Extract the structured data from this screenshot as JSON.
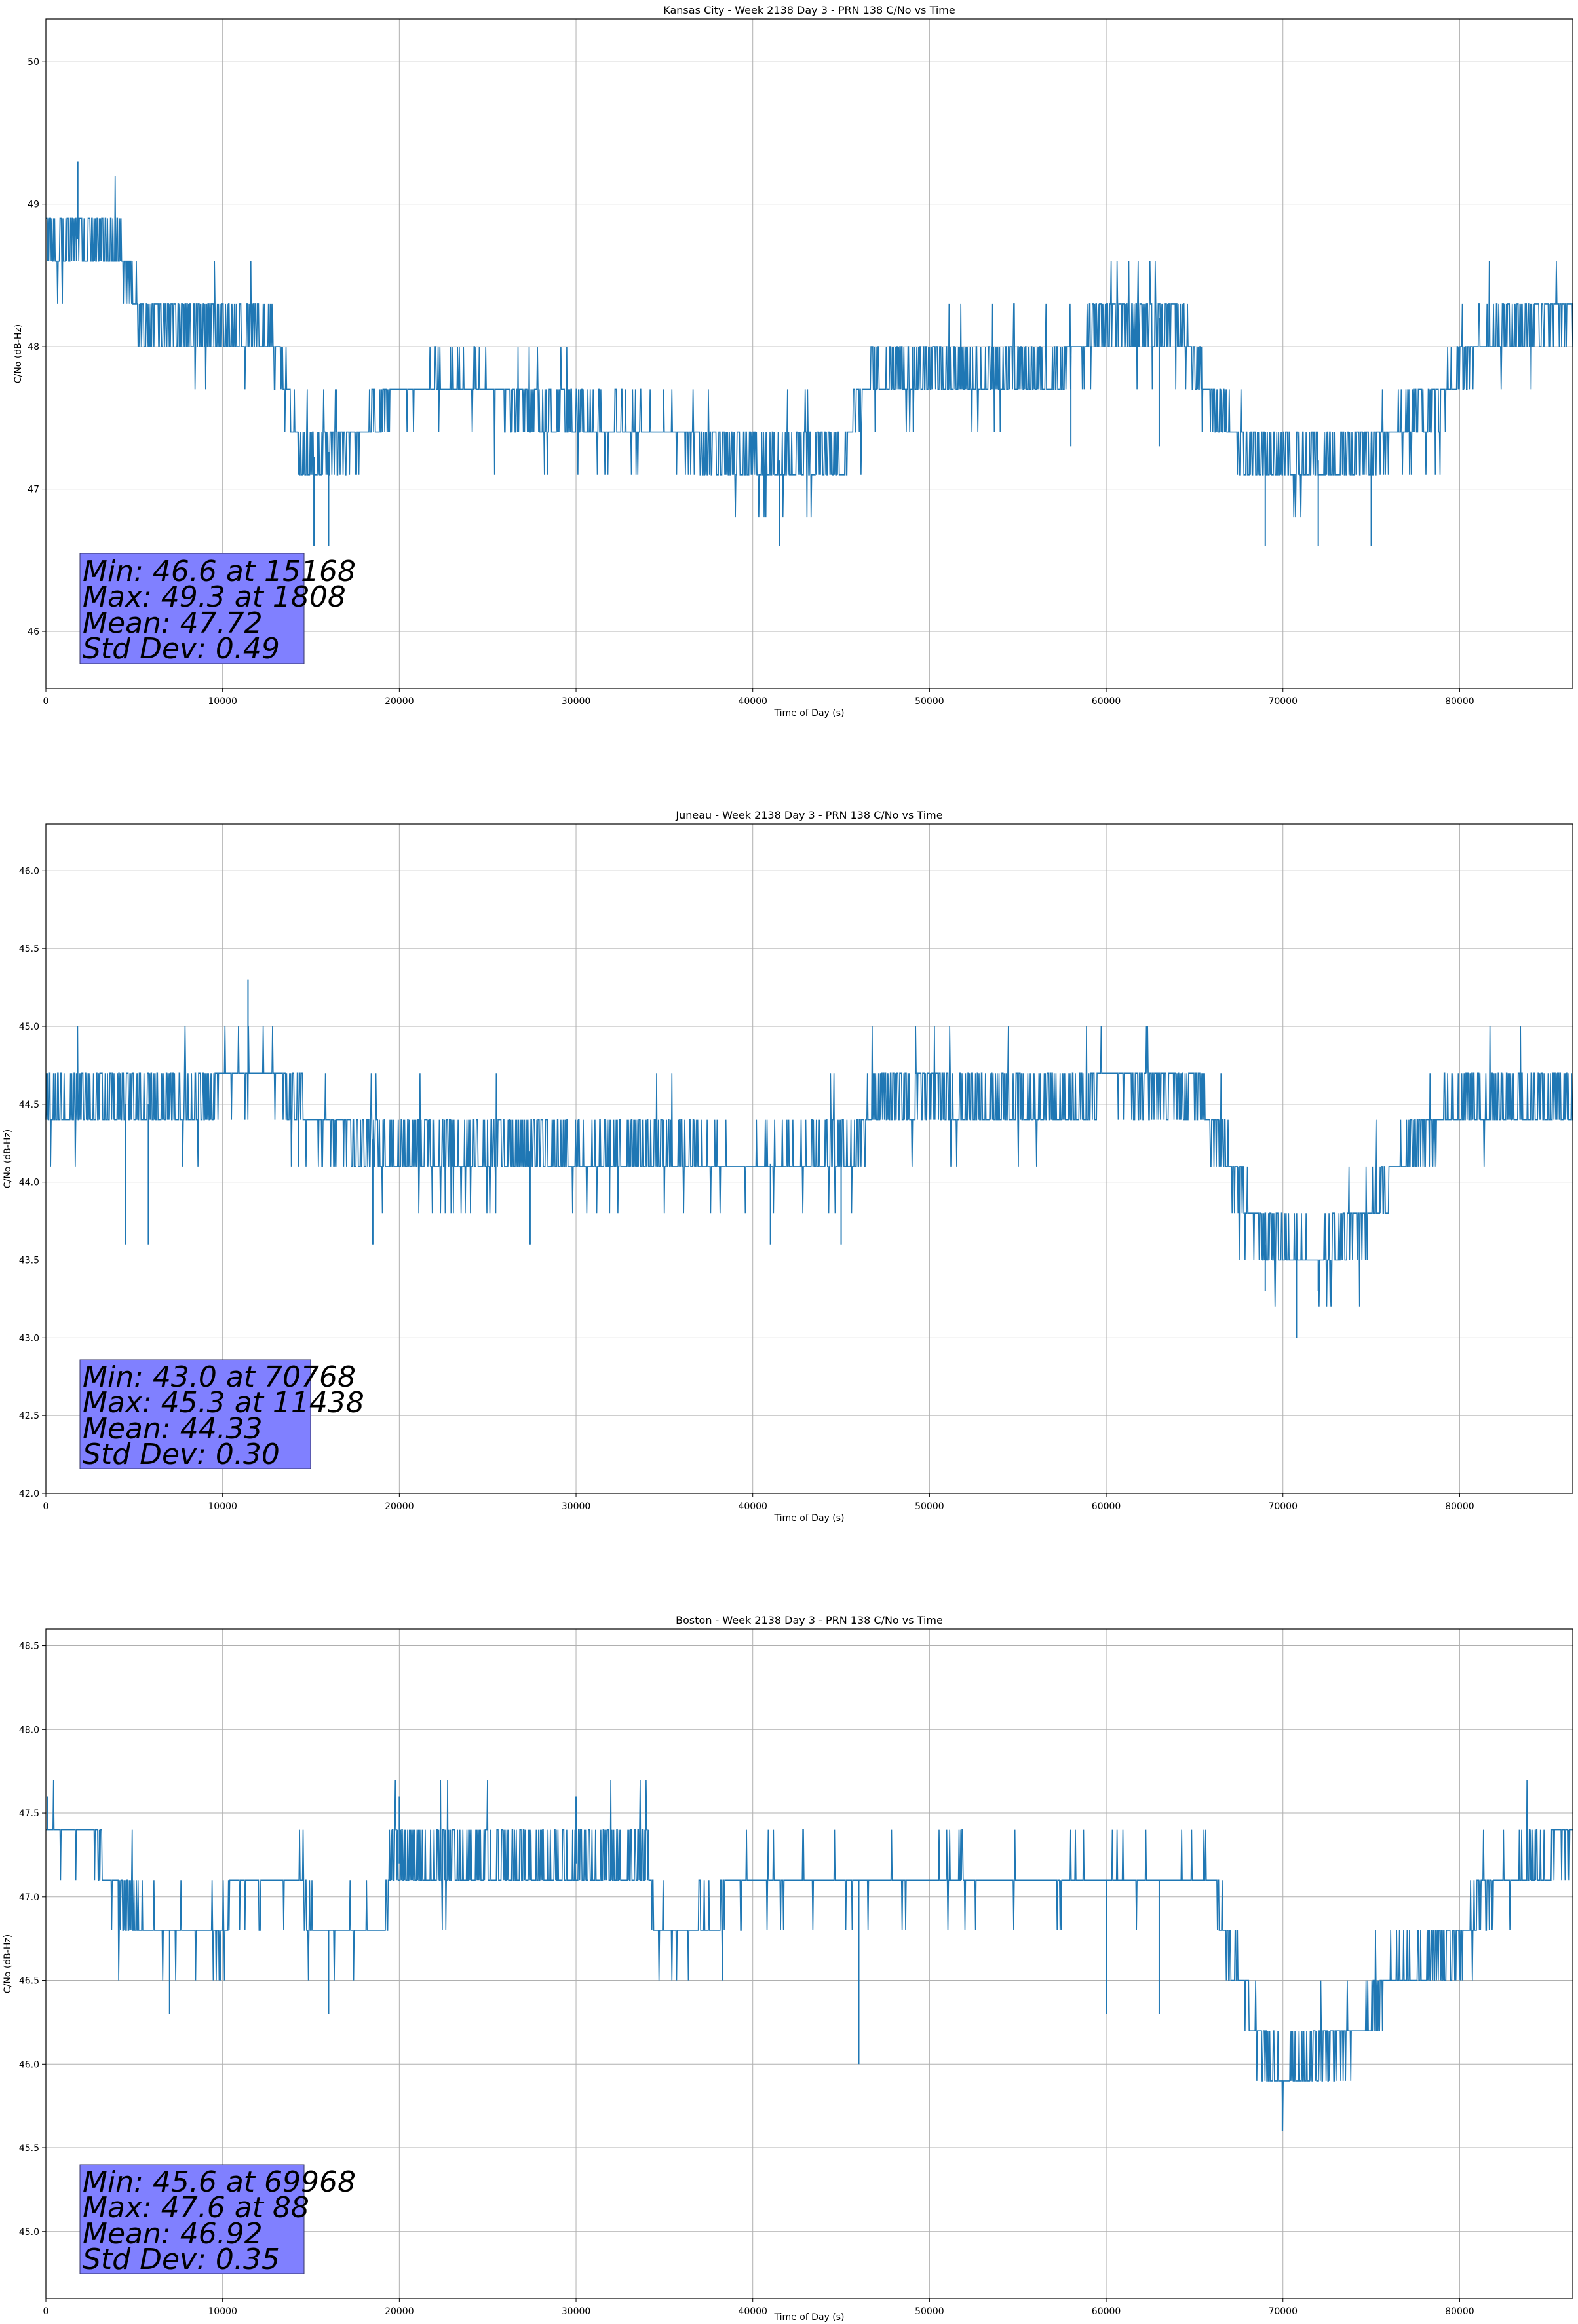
{
  "figure": {
    "series_color": "#1f77b4",
    "stats_box_color": "#8080ff"
  },
  "chart_data": [
    {
      "type": "line",
      "title": "Kansas City - Week 2138 Day 3 - PRN 138 C/No vs Time",
      "xlabel": "Time of Day (s)",
      "ylabel": "C/No (dB-Hz)",
      "xlim": [
        0,
        86400
      ],
      "ylim": [
        45.6,
        50.3
      ],
      "xticks": [
        0,
        10000,
        20000,
        30000,
        40000,
        50000,
        60000,
        70000,
        80000
      ],
      "xtick_labels": [
        "0",
        "10000",
        "20000",
        "30000",
        "40000",
        "50000",
        "60000",
        "70000",
        "80000"
      ],
      "yticks": [
        46,
        47,
        48,
        49,
        50
      ],
      "ytick_labels": [
        "46",
        "47",
        "48",
        "49",
        "50"
      ],
      "grid": true,
      "step": 0.3,
      "profile": [
        [
          0,
          48.8
        ],
        [
          4000,
          48.7
        ],
        [
          5500,
          48.2
        ],
        [
          13000,
          48.1
        ],
        [
          14500,
          47.2
        ],
        [
          17000,
          47.3
        ],
        [
          19500,
          47.6
        ],
        [
          23000,
          47.8
        ],
        [
          29000,
          47.5
        ],
        [
          35000,
          47.4
        ],
        [
          40000,
          47.2
        ],
        [
          45000,
          47.2
        ],
        [
          46500,
          47.8
        ],
        [
          50000,
          47.8
        ],
        [
          57000,
          47.8
        ],
        [
          60000,
          48.2
        ],
        [
          64000,
          48.2
        ],
        [
          66000,
          47.6
        ],
        [
          68000,
          47.2
        ],
        [
          73000,
          47.2
        ],
        [
          78000,
          47.5
        ],
        [
          81000,
          48.0
        ],
        [
          86400,
          48.3
        ]
      ],
      "spikes": [
        [
          1808,
          49.3
        ],
        [
          15168,
          46.6
        ],
        [
          16000,
          46.6
        ],
        [
          41500,
          46.6
        ],
        [
          69000,
          46.6
        ],
        [
          72000,
          46.6
        ],
        [
          75000,
          46.6
        ],
        [
          58000,
          47.3
        ],
        [
          63000,
          47.3
        ]
      ],
      "stats": {
        "min": "Min: 46.6 at 15168",
        "max": "Max: 49.3 at 1808",
        "mean": "Mean: 47.72",
        "std": "Std Dev: 0.49"
      }
    },
    {
      "type": "line",
      "title": "Juneau - Week 2138 Day 3 - PRN 138 C/No vs Time",
      "xlabel": "Time of Day (s)",
      "ylabel": "C/No (dB-Hz)",
      "xlim": [
        0,
        86400
      ],
      "ylim": [
        42.0,
        46.3
      ],
      "xticks": [
        0,
        10000,
        20000,
        30000,
        40000,
        50000,
        60000,
        70000,
        80000
      ],
      "xtick_labels": [
        "0",
        "10000",
        "20000",
        "30000",
        "40000",
        "50000",
        "60000",
        "70000",
        "80000"
      ],
      "yticks": [
        42.0,
        42.5,
        43.0,
        43.5,
        44.0,
        44.5,
        45.0,
        45.5,
        46.0
      ],
      "ytick_labels": [
        "42.0",
        "42.5",
        "43.0",
        "43.5",
        "44.0",
        "44.5",
        "45.0",
        "45.5",
        "46.0"
      ],
      "grid": true,
      "step": 0.3,
      "profile": [
        [
          0,
          44.5
        ],
        [
          9000,
          44.5
        ],
        [
          10000,
          44.7
        ],
        [
          13000,
          44.7
        ],
        [
          15000,
          44.4
        ],
        [
          18000,
          44.3
        ],
        [
          20000,
          44.2
        ],
        [
          35000,
          44.2
        ],
        [
          40000,
          44.1
        ],
        [
          46000,
          44.2
        ],
        [
          47000,
          44.5
        ],
        [
          50000,
          44.6
        ],
        [
          53000,
          44.5
        ],
        [
          58000,
          44.5
        ],
        [
          60000,
          44.7
        ],
        [
          65000,
          44.6
        ],
        [
          67000,
          44.1
        ],
        [
          69000,
          43.6
        ],
        [
          72000,
          43.5
        ],
        [
          75000,
          43.8
        ],
        [
          77000,
          44.2
        ],
        [
          80000,
          44.5
        ],
        [
          86400,
          44.5
        ]
      ],
      "spikes": [
        [
          11438,
          45.3
        ],
        [
          70768,
          43.0
        ],
        [
          4500,
          43.6
        ],
        [
          5800,
          43.6
        ],
        [
          18500,
          43.6
        ],
        [
          27400,
          43.6
        ],
        [
          41000,
          43.6
        ],
        [
          45000,
          43.6
        ],
        [
          69000,
          43.3
        ],
        [
          72000,
          43.3
        ]
      ],
      "stats": {
        "min": "Min: 43.0 at 70768",
        "max": "Max: 45.3 at 11438",
        "mean": "Mean: 44.33",
        "std": "Std Dev: 0.30"
      }
    },
    {
      "type": "line",
      "title": "Boston - Week 2138 Day 3 - PRN 138 C/No vs Time",
      "xlabel": "Time of Day (s)",
      "ylabel": "C/No (dB-Hz)",
      "xlim": [
        0,
        86400
      ],
      "ylim": [
        44.6,
        48.6
      ],
      "xticks": [
        0,
        10000,
        20000,
        30000,
        40000,
        50000,
        60000,
        70000,
        80000
      ],
      "xtick_labels": [
        "0",
        "10000",
        "20000",
        "30000",
        "40000",
        "50000",
        "60000",
        "70000",
        "80000"
      ],
      "yticks": [
        45.0,
        45.5,
        46.0,
        46.5,
        47.0,
        47.5,
        48.0,
        48.5
      ],
      "ytick_labels": [
        "45.0",
        "45.5",
        "46.0",
        "46.5",
        "47.0",
        "47.5",
        "48.0",
        "48.5"
      ],
      "grid": true,
      "step": 0.3,
      "profile": [
        [
          0,
          47.4
        ],
        [
          2500,
          47.4
        ],
        [
          3500,
          47.1
        ],
        [
          5500,
          46.8
        ],
        [
          10000,
          46.8
        ],
        [
          10500,
          47.1
        ],
        [
          14500,
          47.1
        ],
        [
          15000,
          46.8
        ],
        [
          19000,
          46.8
        ],
        [
          19500,
          47.2
        ],
        [
          34000,
          47.2
        ],
        [
          34500,
          46.8
        ],
        [
          38000,
          46.8
        ],
        [
          38500,
          47.1
        ],
        [
          66000,
          47.1
        ],
        [
          67000,
          46.7
        ],
        [
          68500,
          46.2
        ],
        [
          70000,
          45.9
        ],
        [
          72000,
          46.1
        ],
        [
          74500,
          46.2
        ],
        [
          76000,
          46.5
        ],
        [
          80000,
          46.7
        ],
        [
          81000,
          47.0
        ],
        [
          85000,
          47.2
        ],
        [
          86400,
          47.4
        ]
      ],
      "spikes": [
        [
          88,
          47.6
        ],
        [
          69968,
          45.6
        ],
        [
          30000,
          47.6
        ],
        [
          20000,
          47.6
        ],
        [
          46000,
          46.0
        ],
        [
          60000,
          46.3
        ],
        [
          63000,
          46.3
        ],
        [
          7000,
          46.3
        ],
        [
          16000,
          46.3
        ]
      ],
      "stats": {
        "min": "Min: 45.6 at 69968",
        "max": "Max: 47.6 at 88",
        "mean": "Mean: 46.92",
        "std": "Std Dev: 0.35"
      }
    }
  ]
}
